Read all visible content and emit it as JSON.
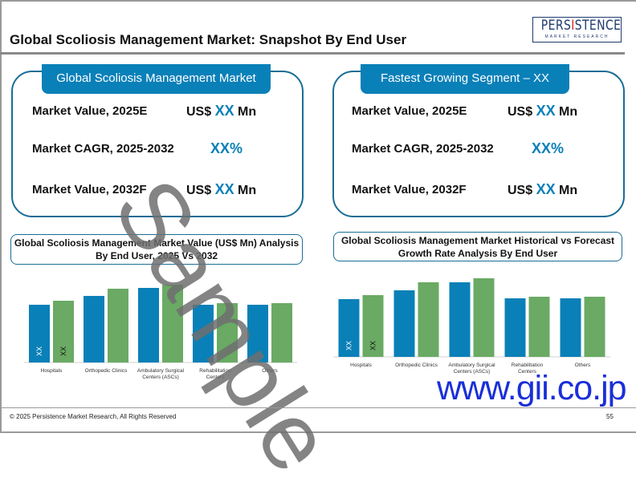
{
  "header": {
    "title": "Global Scoliosis Management Market: Snapshot By End User",
    "logo_text": "PERSISTENCE",
    "logo_sub": "MARKET RESEARCH"
  },
  "left_panel": {
    "heading": "Global Scoliosis Management Market",
    "rows": [
      {
        "label": "Market Value, 2025E",
        "prefix": "US$ ",
        "value": "XX",
        "suffix": " Mn"
      },
      {
        "label": "Market CAGR, 2025-2032",
        "prefix": "",
        "value": "XX%",
        "suffix": ""
      },
      {
        "label": "Market Value, 2032F",
        "prefix": "US$ ",
        "value": "XX",
        "suffix": " Mn"
      }
    ]
  },
  "right_panel": {
    "heading": "Fastest Growing Segment – XX",
    "rows": [
      {
        "label": "Market Value, 2025E",
        "prefix": "US$ ",
        "value": "XX",
        "suffix": " Mn"
      },
      {
        "label": "Market CAGR, 2025-2032",
        "prefix": "",
        "value": "XX%",
        "suffix": ""
      },
      {
        "label": "Market Value, 2032F",
        "prefix": "US$ ",
        "value": "XX",
        "suffix": " Mn"
      }
    ]
  },
  "chart_data": [
    {
      "type": "bar",
      "title": "Global Scoliosis Management Market Value (US$ Mn) Analysis By End User, 2025 Vs 2032",
      "categories": [
        "Hospitals",
        "Orthopedic Clinics",
        "Ambulatory Surgical Centers (ASCs)",
        "Rehabilitation Centers",
        "Others"
      ],
      "series": [
        {
          "values": [
            72,
            83,
            93,
            72,
            72
          ],
          "color": "#0a80b8"
        },
        {
          "values": [
            77,
            92,
            97,
            74,
            74
          ],
          "color": "#6aaa64"
        }
      ],
      "data_labels": [
        "XX",
        "XX"
      ],
      "ylim": [
        0,
        100
      ],
      "grid": false
    },
    {
      "type": "bar",
      "title": "Global Scoliosis Management Market Historical vs Forecast Growth Rate Analysis By End User",
      "categories": [
        "Hospitals",
        "Orthopedic Clinics",
        "Ambulatory Surgical Centers (ASCs)",
        "Rehabilitation Centers",
        "Others"
      ],
      "series": [
        {
          "values": [
            72,
            83,
            93,
            73,
            73
          ],
          "color": "#0a80b8"
        },
        {
          "values": [
            77,
            93,
            98,
            75,
            75
          ],
          "color": "#6aaa64"
        }
      ],
      "data_labels": [
        "XX",
        "XX"
      ],
      "ylim": [
        0,
        100
      ],
      "grid": false
    }
  ],
  "watermark": "Sample",
  "site_watermark": "www.gii.co.jp",
  "footer": {
    "copyright": "© 2025 Persistence Market Research, All Rights Reserved",
    "page": "55"
  }
}
